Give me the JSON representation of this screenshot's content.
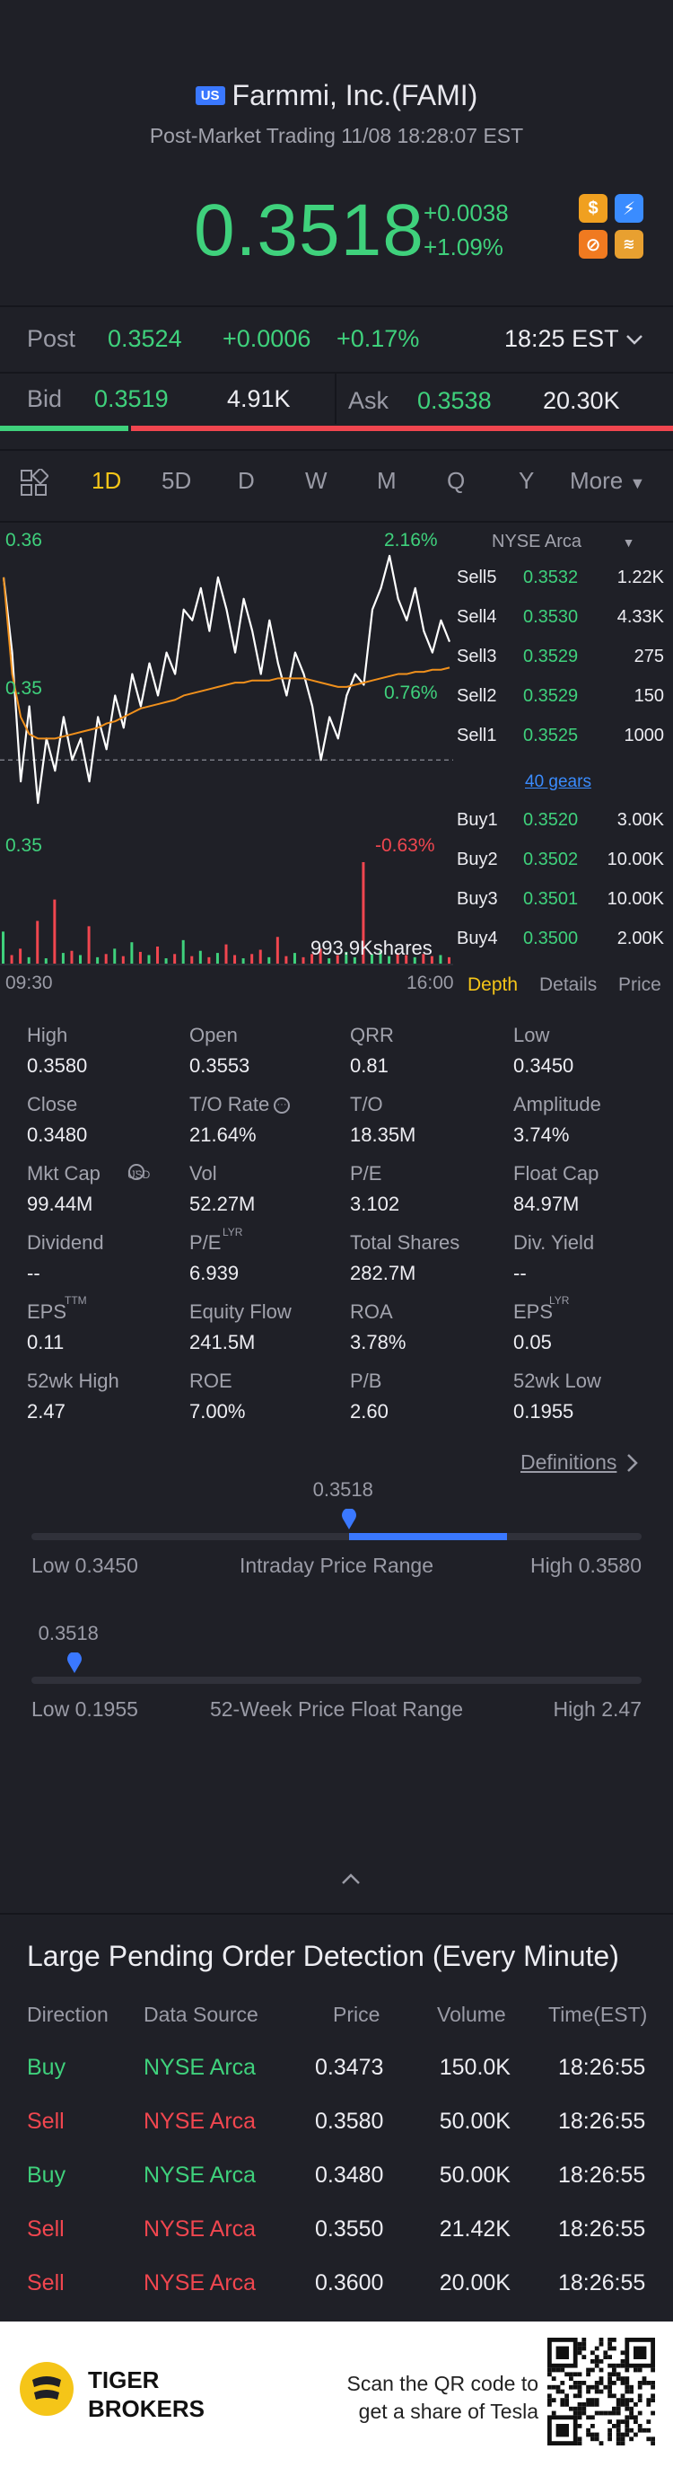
{
  "header": {
    "badge": "US",
    "title": "Farmmi, Inc.(FAMI)",
    "subtitle": "Post-Market Trading 11/08 18:28:07 EST",
    "price": "0.3518",
    "change": "+0.0038",
    "change_pct": "+1.09%",
    "icons": [
      "dollar-icon",
      "lightning-icon",
      "no-short-icon",
      "stack-icon"
    ]
  },
  "post": {
    "label": "Post",
    "price": "0.3524",
    "change": "+0.0006",
    "change_pct": "+0.17%",
    "time": "18:25 EST"
  },
  "quote": {
    "bid_label": "Bid",
    "bid": "0.3519",
    "bid_vol": "4.91K",
    "ask_label": "Ask",
    "ask": "0.3538",
    "ask_vol": "20.30K",
    "bid_ratio": 0.19
  },
  "timeframes": [
    "1D",
    "5D",
    "D",
    "W",
    "M",
    "Q",
    "Y",
    "More"
  ],
  "active_timeframe": "1D",
  "chart": {
    "high_label": "0.36",
    "mid_label": "0.35",
    "low_label": "0.35",
    "high_pct": "2.16%",
    "mid_pct": "0.76%",
    "low_pct": "-0.63%",
    "volume_label": "993.9Kshares",
    "time_start": "09:30",
    "time_end": "16:00",
    "colors": {
      "price_line": "#ffffff",
      "avg_line": "#f0901c",
      "up_bar": "#3fd17c",
      "down_bar": "#f0464f"
    }
  },
  "chart_data": {
    "type": "line",
    "title": "",
    "series": [
      {
        "values": [
          0.3565,
          0.353,
          0.347,
          0.3505,
          0.346,
          0.349,
          0.3475,
          0.35,
          0.348,
          0.349,
          0.347,
          0.35,
          0.3485,
          0.351,
          0.3495,
          0.352,
          0.3505,
          0.3525,
          0.351,
          0.353,
          0.352,
          0.355,
          0.3545,
          0.356,
          0.354,
          0.3565,
          0.355,
          0.353,
          0.3555,
          0.354,
          0.352,
          0.3545,
          0.3525,
          0.351,
          0.353,
          0.352,
          0.3505,
          0.348,
          0.35,
          0.349,
          0.351,
          0.352,
          0.3515,
          0.355,
          0.356,
          0.3575,
          0.3555,
          0.3545,
          0.356,
          0.354,
          0.353,
          0.3545,
          0.3535
        ]
      },
      {
        "values": [
          0.3565,
          0.352,
          0.35,
          0.3492,
          0.349,
          0.349,
          0.349,
          0.3491,
          0.3492,
          0.3493,
          0.3494,
          0.3495,
          0.3497,
          0.3498,
          0.35,
          0.3502,
          0.3504,
          0.3505,
          0.3506,
          0.3507,
          0.3508,
          0.351,
          0.3511,
          0.3512,
          0.3513,
          0.3514,
          0.3515,
          0.3516,
          0.3516,
          0.3517,
          0.3517,
          0.3517,
          0.3518,
          0.3518,
          0.3518,
          0.3518,
          0.3517,
          0.3516,
          0.3515,
          0.3514,
          0.3514,
          0.3515,
          0.3516,
          0.3517,
          0.3518,
          0.3519,
          0.352,
          0.352,
          0.3521,
          0.3521,
          0.3522,
          0.3522,
          0.3523
        ]
      }
    ],
    "ylim": [
      0.3445,
      0.3585
    ],
    "volume": [
      30,
      8,
      14,
      6,
      40,
      5,
      60,
      10,
      12,
      8,
      35,
      6,
      9,
      14,
      7,
      20,
      11,
      8,
      16,
      5,
      9,
      22,
      7,
      12,
      6,
      10,
      18,
      8,
      5,
      9,
      13,
      6,
      25,
      7,
      10,
      6,
      9,
      14,
      5,
      8,
      11,
      6,
      95,
      9,
      12,
      7,
      10,
      8,
      6,
      9,
      7,
      8,
      6
    ]
  },
  "orderbook": {
    "exchange": "NYSE Arca",
    "sells": [
      {
        "label": "Sell5",
        "price": "0.3532",
        "vol": "1.22K"
      },
      {
        "label": "Sell4",
        "price": "0.3530",
        "vol": "4.33K"
      },
      {
        "label": "Sell3",
        "price": "0.3529",
        "vol": "275"
      },
      {
        "label": "Sell2",
        "price": "0.3529",
        "vol": "150"
      },
      {
        "label": "Sell1",
        "price": "0.3525",
        "vol": "1000"
      }
    ],
    "gears": "40 gears",
    "buys": [
      {
        "label": "Buy1",
        "price": "0.3520",
        "vol": "3.00K"
      },
      {
        "label": "Buy2",
        "price": "0.3502",
        "vol": "10.00K"
      },
      {
        "label": "Buy3",
        "price": "0.3501",
        "vol": "10.00K"
      },
      {
        "label": "Buy4",
        "price": "0.3500",
        "vol": "2.00K"
      }
    ],
    "tabs": [
      "Depth",
      "Details",
      "Price"
    ]
  },
  "stats": [
    [
      {
        "label": "High",
        "value": "0.3580"
      },
      {
        "label": "Open",
        "value": "0.3553"
      },
      {
        "label": "QRR",
        "value": "0.81"
      },
      {
        "label": "Low",
        "value": "0.3450"
      }
    ],
    [
      {
        "label": "Close",
        "value": "0.3480"
      },
      {
        "label": "T/O Rate",
        "value": "21.64%"
      },
      {
        "label": "T/O",
        "value": "18.35M"
      },
      {
        "label": "Amplitude",
        "value": "3.74%"
      }
    ],
    [
      {
        "label": "Mkt Cap",
        "value": "99.44M"
      },
      {
        "label": "Vol",
        "value": "52.27M"
      },
      {
        "label": "P/E",
        "value": "3.102"
      },
      {
        "label": "Float Cap",
        "value": "84.97M"
      }
    ],
    [
      {
        "label": "Dividend",
        "value": "--"
      },
      {
        "label": "P/E",
        "value": "6.939"
      },
      {
        "label": "Total Shares",
        "value": "282.7M"
      },
      {
        "label": "Div. Yield",
        "value": "--"
      }
    ],
    [
      {
        "label": "EPS",
        "value": "0.11"
      },
      {
        "label": "Equity Flow",
        "value": "241.5M"
      },
      {
        "label": "ROA",
        "value": "3.78%"
      },
      {
        "label": "EPS",
        "value": "0.05"
      }
    ],
    [
      {
        "label": "52wk High",
        "value": "2.47"
      },
      {
        "label": "ROE",
        "value": "7.00%"
      },
      {
        "label": "P/B",
        "value": "2.60"
      },
      {
        "label": "52wk Low",
        "value": "0.1955"
      }
    ]
  ],
  "superscripts": {
    "mktcap": "USD",
    "pe": "LYR",
    "eps_ttm": "TTM",
    "eps_lyr": "LYR"
  },
  "definitions": "Definitions",
  "intraday": {
    "current": "0.3518",
    "low": "Low 0.3450",
    "label": "Intraday Price Range",
    "high": "High 0.3580",
    "position": 0.52
  },
  "week52": {
    "current": "0.3518",
    "low": "Low 0.1955",
    "label": "52-Week Price Float Range",
    "high": "High 2.47",
    "position": 0.07
  },
  "large_orders": {
    "title": "Large Pending Order Detection (Every Minute)",
    "columns": [
      "Direction",
      "Data Source",
      "Price",
      "Volume",
      "Time(EST)"
    ],
    "rows": [
      {
        "dir": "Buy",
        "src": "NYSE Arca",
        "price": "0.3473",
        "vol": "150.0K",
        "time": "18:26:55"
      },
      {
        "dir": "Sell",
        "src": "NYSE Arca",
        "price": "0.3580",
        "vol": "50.00K",
        "time": "18:26:55"
      },
      {
        "dir": "Buy",
        "src": "NYSE Arca",
        "price": "0.3480",
        "vol": "50.00K",
        "time": "18:26:55"
      },
      {
        "dir": "Sell",
        "src": "NYSE Arca",
        "price": "0.3550",
        "vol": "21.42K",
        "time": "18:26:55"
      },
      {
        "dir": "Sell",
        "src": "NYSE Arca",
        "price": "0.3600",
        "vol": "20.00K",
        "time": "18:26:55"
      }
    ]
  },
  "footer": {
    "brand_line1": "TIGER",
    "brand_line2": "BROKERS",
    "qr_line1": "Scan the QR code to",
    "qr_line2": "get a share of Tesla"
  }
}
